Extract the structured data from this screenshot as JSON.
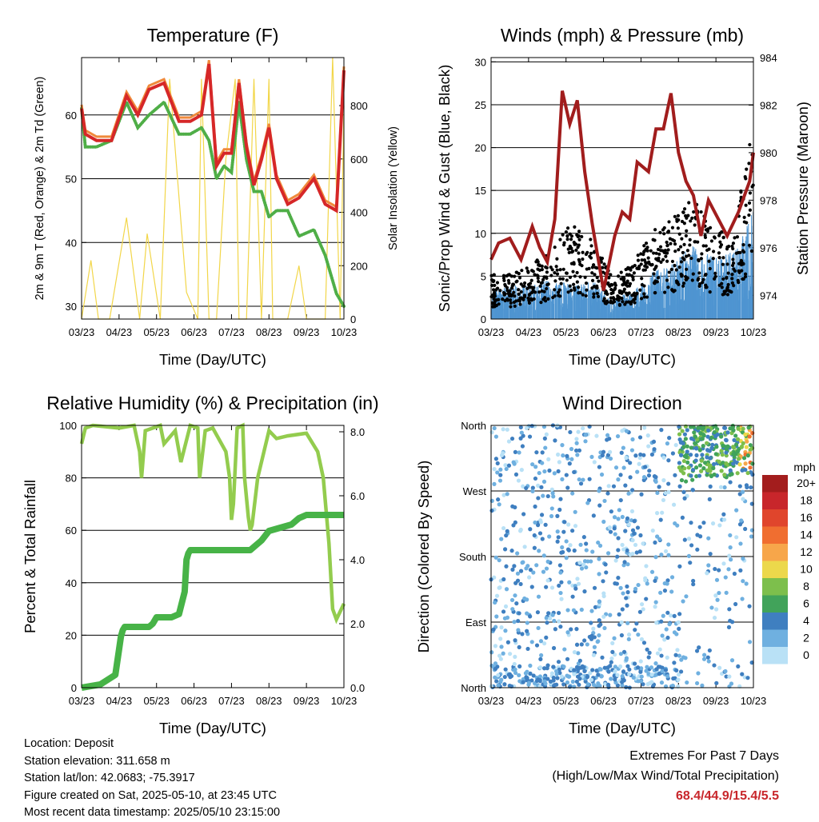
{
  "colors": {
    "temp2m": "#d62728",
    "temp9m": "#f08a3c",
    "dewpoint": "#4fae47",
    "solar": "#f2d649",
    "wind": "#4f95d1",
    "gust": "#000000",
    "pressure": "#a11d1d",
    "rh": "#93cc4e",
    "precip": "#47b347",
    "grid": "#000000"
  },
  "x_ticks": [
    "03/23",
    "04/23",
    "05/23",
    "06/23",
    "07/23",
    "08/23",
    "09/23",
    "10/23"
  ],
  "info": {
    "location": "Location: Deposit",
    "elevation": "Station elevation: 311.658 m",
    "latlon": "Station lat/lon: 42.0683; -75.3917",
    "created": "Figure created on Sat, 2025-05-10, at 23:45 UTC",
    "recent": "Most recent data timestamp: 2025/05/10 23:15:00"
  },
  "extremes": {
    "title": "Extremes For Past 7 Days",
    "subtitle": "(High/Low/Max Wind/Total Precipitation)",
    "values": "68.4/44.9/15.4/5.5"
  },
  "chart_data": [
    {
      "type": "line",
      "title": "Temperature (F)",
      "xlabel": "Time (Day/UTC)",
      "ylabel": "2m & 9m T (Red, Orange) & 2m Td (Green)",
      "y2label": "Solar Insolation (Yellow)",
      "ylim": [
        28,
        69
      ],
      "y2lim": [
        0,
        980
      ],
      "yticks": [
        "30",
        "40",
        "50",
        "60"
      ],
      "y2ticks": [
        "0",
        "200",
        "400",
        "600",
        "800"
      ],
      "grid": "horizontal",
      "series": [
        {
          "key": "temp2m",
          "color": "temp2m",
          "x": [
            0,
            0.1,
            0.4,
            0.8,
            1.2,
            1.5,
            1.8,
            2.2,
            2.6,
            2.9,
            3.2,
            3.4,
            3.6,
            3.8,
            4.0,
            4.2,
            4.4,
            4.6,
            4.8,
            5.0,
            5.2,
            5.5,
            5.8,
            6.2,
            6.5,
            6.8,
            7.0
          ],
          "y": [
            61,
            57,
            56,
            56,
            63,
            60,
            64,
            65,
            59,
            59,
            60,
            68,
            52,
            54,
            54,
            65,
            55,
            49,
            53,
            58,
            50,
            46,
            47,
            50,
            46,
            45,
            67
          ]
        },
        {
          "key": "dewpoint",
          "color": "dewpoint",
          "x": [
            0,
            0.1,
            0.4,
            0.8,
            1.2,
            1.5,
            1.8,
            2.2,
            2.6,
            2.9,
            3.2,
            3.4,
            3.6,
            3.8,
            4.0,
            4.2,
            4.4,
            4.6,
            4.8,
            5.0,
            5.2,
            5.5,
            5.8,
            6.2,
            6.5,
            6.8,
            7.0
          ],
          "y": [
            61,
            55,
            55,
            56,
            62,
            58,
            60,
            62,
            57,
            57,
            58,
            56,
            50,
            52,
            51,
            62,
            53,
            48,
            48,
            44,
            45,
            45,
            41,
            42,
            38,
            32,
            30
          ]
        },
        {
          "key": "solar",
          "color": "solar",
          "axis": "y2",
          "x": [
            0,
            0.25,
            0.45,
            0.75,
            1.2,
            1.55,
            1.75,
            2.1,
            2.35,
            2.8,
            3.1,
            3.2,
            3.4,
            3.6,
            3.85,
            4.1,
            4.2,
            4.4,
            4.6,
            4.8,
            5.0,
            5.1,
            5.3,
            5.5,
            5.8,
            6.0,
            6.2,
            6.5,
            6.7,
            6.9,
            7.0
          ],
          "y": [
            0,
            220,
            0,
            0,
            380,
            0,
            320,
            0,
            900,
            100,
            0,
            900,
            0,
            0,
            600,
            900,
            0,
            0,
            900,
            0,
            900,
            0,
            0,
            0,
            200,
            0,
            0,
            0,
            980,
            0,
            800
          ]
        }
      ]
    },
    {
      "type": "scatter",
      "title": "Winds (mph) & Pressure (mb)",
      "xlabel": "Time (Day/UTC)",
      "ylabel": "Sonic/Prop Wind & Gust (Blue, Black)",
      "y2label": "Station Pressure (Maroon)",
      "ylim": [
        0,
        30.5
      ],
      "y2lim": [
        973,
        984
      ],
      "yticks": [
        "0",
        "5",
        "10",
        "15",
        "20",
        "25",
        "30"
      ],
      "y2ticks": [
        "974",
        "976",
        "978",
        "980",
        "982",
        "984"
      ],
      "grid": "horizontal",
      "series": [
        {
          "key": "pressure",
          "color": "pressure",
          "axis": "y2",
          "x": [
            0,
            0.2,
            0.5,
            0.8,
            1.1,
            1.3,
            1.5,
            1.7,
            1.9,
            2.1,
            2.3,
            2.5,
            2.7,
            3.0,
            3.3,
            3.5,
            3.7,
            3.9,
            4.2,
            4.4,
            4.6,
            4.8,
            5.0,
            5.2,
            5.4,
            5.6,
            5.8,
            6.0,
            6.3,
            6.6,
            6.9,
            7.0
          ],
          "y": [
            975.5,
            976.2,
            976.4,
            975.5,
            976.9,
            976.0,
            975.4,
            977.2,
            982.6,
            981.2,
            982.2,
            979.2,
            977.0,
            974.2,
            976.5,
            977.5,
            977.2,
            979.6,
            979.2,
            981.0,
            981.0,
            982.5,
            980.0,
            978.8,
            978.2,
            976.5,
            978.0,
            977.4,
            976.5,
            977.5,
            978.8,
            980.0
          ]
        },
        {
          "key": "wind",
          "color": "wind",
          "x_range": [
            0,
            7
          ],
          "y_range": [
            0,
            14
          ],
          "trend": [
            2,
            2.5,
            2.5,
            3,
            2.5,
            3,
            1.5,
            2,
            3.5,
            4,
            5.5,
            4.5,
            5,
            8
          ]
        },
        {
          "key": "gust",
          "color": "gust",
          "x_range": [
            0,
            7
          ],
          "y_range": [
            0,
            28.5
          ],
          "trend": [
            4,
            4,
            5,
            6,
            9,
            7,
            4,
            5,
            8,
            9,
            11,
            8,
            8,
            18
          ]
        }
      ]
    },
    {
      "type": "line",
      "title": "Relative Humidity (%) & Precipitation (in)",
      "xlabel": "Time (Day/UTC)",
      "ylabel": "Percent & Total Rainfall",
      "y2label": "",
      "ylim": [
        0,
        100
      ],
      "y2lim": [
        0,
        8.2
      ],
      "yticks": [
        "0",
        "20",
        "40",
        "60",
        "80",
        "100"
      ],
      "y2ticks": [
        "0.0",
        "2.0",
        "4.0",
        "6.0",
        "8.0"
      ],
      "grid": "horizontal",
      "series": [
        {
          "key": "rh",
          "color": "rh",
          "x": [
            0,
            0.1,
            0.3,
            1.0,
            1.4,
            1.55,
            1.6,
            1.7,
            2.1,
            2.2,
            2.5,
            2.65,
            2.9,
            3.1,
            3.15,
            3.3,
            3.5,
            3.85,
            3.95,
            4.0,
            4.05,
            4.15,
            4.3,
            4.35,
            4.45,
            4.5,
            4.55,
            4.7,
            4.8,
            5.0,
            5.2,
            5.5,
            6.0,
            6.3,
            6.45,
            6.6,
            6.7,
            6.8,
            7.0
          ],
          "y": [
            93,
            99,
            100,
            99,
            100,
            90,
            80,
            98,
            100,
            93,
            98,
            86,
            100,
            99,
            80,
            98,
            99,
            90,
            80,
            64,
            70,
            99,
            100,
            80,
            65,
            60,
            62,
            80,
            86,
            98,
            95,
            96,
            97,
            90,
            80,
            55,
            30,
            26,
            32
          ]
        },
        {
          "key": "precip",
          "color": "precip",
          "x": [
            0,
            0.5,
            0.9,
            1.0,
            1.05,
            1.1,
            1.15,
            1.25,
            1.5,
            1.8,
            1.9,
            2.0,
            2.4,
            2.6,
            2.75,
            2.8,
            2.85,
            2.9,
            3.1,
            3.5,
            3.8,
            4.2,
            4.5,
            4.6,
            4.8,
            5.0,
            5.3,
            5.6,
            5.8,
            6.0,
            6.4,
            6.8,
            7.0
          ],
          "y": [
            0,
            0.1,
            0.4,
            1.2,
            1.6,
            1.8,
            1.9,
            1.9,
            1.9,
            1.9,
            2.0,
            2.2,
            2.2,
            2.3,
            3.0,
            4.0,
            4.2,
            4.3,
            4.3,
            4.3,
            4.3,
            4.3,
            4.3,
            4.4,
            4.6,
            4.9,
            5.0,
            5.1,
            5.3,
            5.4,
            5.4,
            5.4,
            5.4
          ]
        }
      ]
    },
    {
      "type": "scatter",
      "title": "Wind Direction",
      "xlabel": "Time (Day/UTC)",
      "ylabel": "Direction (Colored By Speed)",
      "ylim": [
        0,
        360
      ],
      "yticks": [
        "North",
        "East",
        "South",
        "West",
        "North"
      ],
      "grid": "horizontal",
      "legend": {
        "title": "mph",
        "position": "right",
        "labels": [
          "20+",
          "18",
          "16",
          "14",
          "12",
          "10",
          "8",
          "6",
          "4",
          "2",
          "0"
        ],
        "colors": [
          "#a31d1d",
          "#c8262b",
          "#e0452c",
          "#f06e30",
          "#f7a64a",
          "#ecd84b",
          "#7dbf4c",
          "#41a35a",
          "#3f7fc0",
          "#6fb0e0",
          "#b9e1f6"
        ]
      }
    }
  ]
}
